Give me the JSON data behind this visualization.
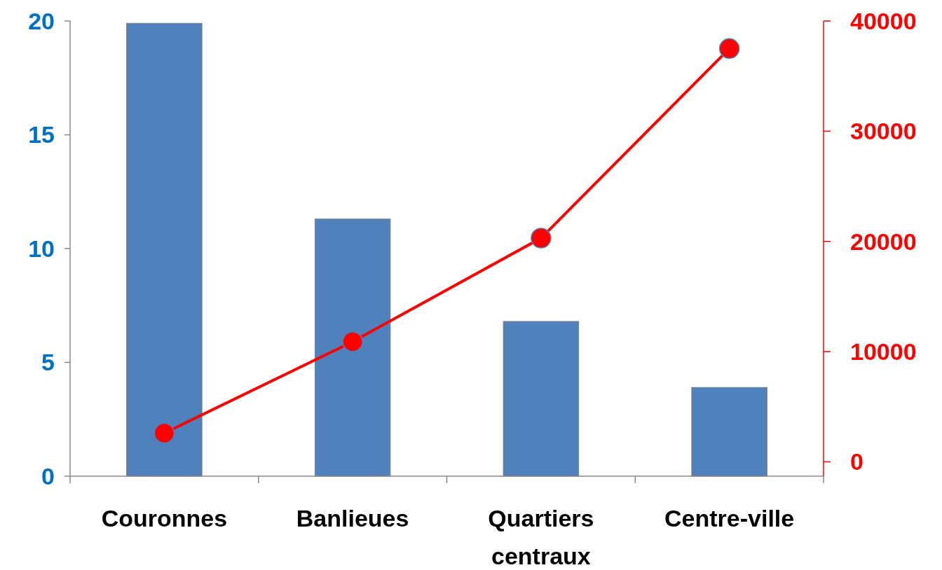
{
  "chart_data": {
    "type": "bar",
    "categories": [
      "Couronnes",
      "Banlieues",
      "Quartiers centraux",
      "Centre-ville"
    ],
    "series": [
      {
        "color": "#4f81bd",
        "values": [
          19.9,
          11.3,
          6.8,
          3.9
        ]
      },
      {
        "type": "line",
        "axis": "y2",
        "color": "#ff0000",
        "values": [
          2600,
          10900,
          20300,
          37500
        ],
        "marker": "circle"
      }
    ],
    "ylim": [
      0,
      20
    ],
    "yticks": [
      0,
      5,
      10,
      15,
      20
    ],
    "y2lim": [
      -1300,
      40000
    ],
    "y2ticks": [
      0,
      10000,
      20000,
      30000,
      40000
    ],
    "grid": false
  }
}
